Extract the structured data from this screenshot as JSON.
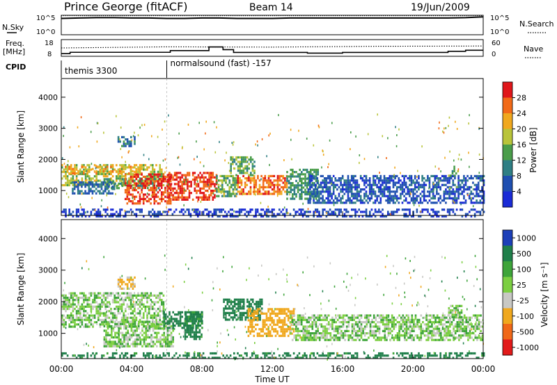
{
  "header": {
    "station": "Prince George (fitACF)",
    "beam": "Beam 14",
    "date": "19/Jun/2009"
  },
  "top_panels": {
    "nsky_label": "N.Sky",
    "nsearch_label": "N.Search",
    "ns_ticks": [
      "10^5",
      "10^0"
    ],
    "freq_label": "Freq.",
    "freq_unit": "[MHz]",
    "freq_ticks": [
      "18",
      "8"
    ],
    "nave_label": "Nave",
    "nave_ticks": [
      "60",
      "0"
    ],
    "cpid_label": "CPID",
    "cpid_segments": [
      {
        "label": "themis 3300",
        "start": 0.0,
        "end": 6.0
      },
      {
        "label": "normalsound (fast) -157",
        "start": 6.0,
        "end": 24.0
      }
    ]
  },
  "chart_data": [
    {
      "type": "line",
      "title": "N.Sky",
      "x": [
        0,
        1,
        2,
        3,
        4,
        5,
        6,
        7,
        8,
        9,
        10,
        11,
        12,
        13,
        14,
        15,
        16,
        17,
        18,
        19,
        20,
        21,
        22,
        23,
        24
      ],
      "series": [
        {
          "name": "N.Sky",
          "values": [
            4.2,
            4.3,
            4.4,
            4.4,
            4.3,
            4.3,
            4.2,
            4.2,
            4.3,
            4.3,
            4.2,
            4.2,
            4.2,
            4.3,
            4.3,
            4.3,
            4.3,
            4.3,
            4.3,
            4.3,
            4.3,
            4.3,
            4.3,
            4.4,
            4.6
          ]
        },
        {
          "name": "N.Search",
          "values": [
            4.9,
            4.9,
            4.9,
            4.9,
            4.9,
            4.9,
            4.9,
            4.9,
            4.9,
            4.9,
            4.9,
            4.9,
            4.9,
            4.9,
            4.9,
            4.9,
            4.9,
            4.9,
            4.9,
            4.9,
            4.9,
            4.9,
            4.9,
            4.9,
            4.9
          ]
        }
      ],
      "ylim": [
        0,
        5
      ]
    },
    {
      "type": "line",
      "title": "Freq. / Nave",
      "freq_steps": [
        [
          0,
          9.6
        ],
        [
          0.5,
          10.4
        ],
        [
          6.2,
          11.4
        ],
        [
          8.4,
          13.6
        ],
        [
          9.2,
          12.0
        ],
        [
          9.8,
          10.3
        ],
        [
          14.0,
          9.9
        ],
        [
          16.0,
          10.3
        ],
        [
          22.0,
          11.0
        ],
        [
          23.0,
          11.6
        ],
        [
          24.0,
          11.6
        ]
      ],
      "nave_values": [
        [
          0,
          30
        ],
        [
          6,
          34
        ],
        [
          12,
          33
        ],
        [
          18,
          36
        ],
        [
          24,
          37
        ]
      ],
      "freq_ylim": [
        8,
        18
      ],
      "nave_ylim": [
        0,
        60
      ]
    },
    {
      "type": "heatmap",
      "title": "Power",
      "colorbar_label": "Power [dB]",
      "colorbar_ticks": [
        "4",
        "8",
        "12",
        "16",
        "20",
        "24",
        "28"
      ],
      "colorbar_colors": [
        "#1a2bd6",
        "#1f4fb0",
        "#2f7f84",
        "#4a9d4a",
        "#b9c43a",
        "#f0a81e",
        "#f26a18",
        "#e0161a"
      ],
      "ylabel": "Slant Range [km]",
      "yticks": [
        "1000",
        "2000",
        "3000",
        "4000"
      ],
      "ylim": [
        200,
        4600
      ],
      "xlim": [
        0,
        24
      ],
      "features": [
        {
          "t0": 0.0,
          "t1": 5.8,
          "r0": 1200,
          "r1": 1850,
          "val": 18
        },
        {
          "t0": 0.2,
          "t1": 4.6,
          "r0": 1550,
          "r1": 1800,
          "val": 22
        },
        {
          "t0": 2.4,
          "t1": 5.6,
          "r0": 1100,
          "r1": 1400,
          "val": 12
        },
        {
          "t0": 3.2,
          "t1": 4.2,
          "r0": 2400,
          "r1": 2750,
          "val": 10
        },
        {
          "t0": 3.6,
          "t1": 6.2,
          "r0": 600,
          "r1": 1550,
          "val": 28
        },
        {
          "t0": 6.0,
          "t1": 8.8,
          "r0": 700,
          "r1": 1600,
          "val": 28
        },
        {
          "t0": 8.8,
          "t1": 10.0,
          "r0": 800,
          "r1": 1500,
          "val": 14
        },
        {
          "t0": 10.0,
          "t1": 12.8,
          "r0": 900,
          "r1": 1500,
          "val": 26
        },
        {
          "t0": 9.6,
          "t1": 11.0,
          "r0": 1500,
          "r1": 2100,
          "val": 14
        },
        {
          "t0": 12.8,
          "t1": 14.6,
          "r0": 700,
          "r1": 1700,
          "val": 12
        },
        {
          "t0": 14.0,
          "t1": 24.0,
          "r0": 600,
          "r1": 1500,
          "val": 6
        },
        {
          "t0": 22.0,
          "t1": 22.6,
          "r0": 1500,
          "r1": 1800,
          "val": 14
        },
        {
          "t0": 0.6,
          "t1": 3.0,
          "r0": 900,
          "r1": 1300,
          "val": 8
        },
        {
          "t0": 0.0,
          "t1": 24.0,
          "r0": 200,
          "r1": 420,
          "val": 4
        }
      ]
    },
    {
      "type": "heatmap",
      "title": "Velocity",
      "colorbar_label": "Velocity [m s⁻¹]",
      "colorbar_ticks": [
        "1000",
        "500",
        "100",
        "25",
        "-25",
        "-100",
        "-500",
        "-1000"
      ],
      "colorbar_colors": [
        "#1c3fb8",
        "#1f7f4a",
        "#3ea43a",
        "#7ccf42",
        "#c8c8c4",
        "#f0a81e",
        "#f06818",
        "#e21a1a"
      ],
      "ylabel": "Slant Range [km]",
      "yticks": [
        "1000",
        "2000",
        "3000",
        "4000"
      ],
      "ylim": [
        200,
        4600
      ],
      "xlim": [
        0,
        24
      ],
      "xlabel": "Time UT",
      "xticks": [
        "00:00",
        "04:00",
        "08:00",
        "12:00",
        "16:00",
        "20:00",
        "00:00"
      ],
      "features": [
        {
          "t0": 0.0,
          "t1": 5.8,
          "r0": 1200,
          "r1": 2300,
          "val": 0
        },
        {
          "t0": 2.4,
          "t1": 6.4,
          "r0": 600,
          "r1": 1400,
          "val": 0
        },
        {
          "t0": 5.8,
          "t1": 8.0,
          "r0": 1200,
          "r1": 1700,
          "val": 150
        },
        {
          "t0": 7.0,
          "t1": 8.0,
          "r0": 800,
          "r1": 1700,
          "val": 150
        },
        {
          "t0": 9.2,
          "t1": 11.4,
          "r0": 1400,
          "r1": 2100,
          "val": 400
        },
        {
          "t0": 10.6,
          "t1": 13.2,
          "r0": 900,
          "r1": 1800,
          "val": -200
        },
        {
          "t0": 3.2,
          "t1": 4.2,
          "r0": 2400,
          "r1": 2800,
          "val": -120
        },
        {
          "t0": 13.0,
          "t1": 24.0,
          "r0": 800,
          "r1": 1600,
          "val": 0
        },
        {
          "t0": 22.0,
          "t1": 22.8,
          "r0": 1500,
          "r1": 1900,
          "val": 0
        },
        {
          "t0": 0.0,
          "t1": 24.0,
          "r0": 200,
          "r1": 400,
          "val": 150
        }
      ]
    }
  ]
}
